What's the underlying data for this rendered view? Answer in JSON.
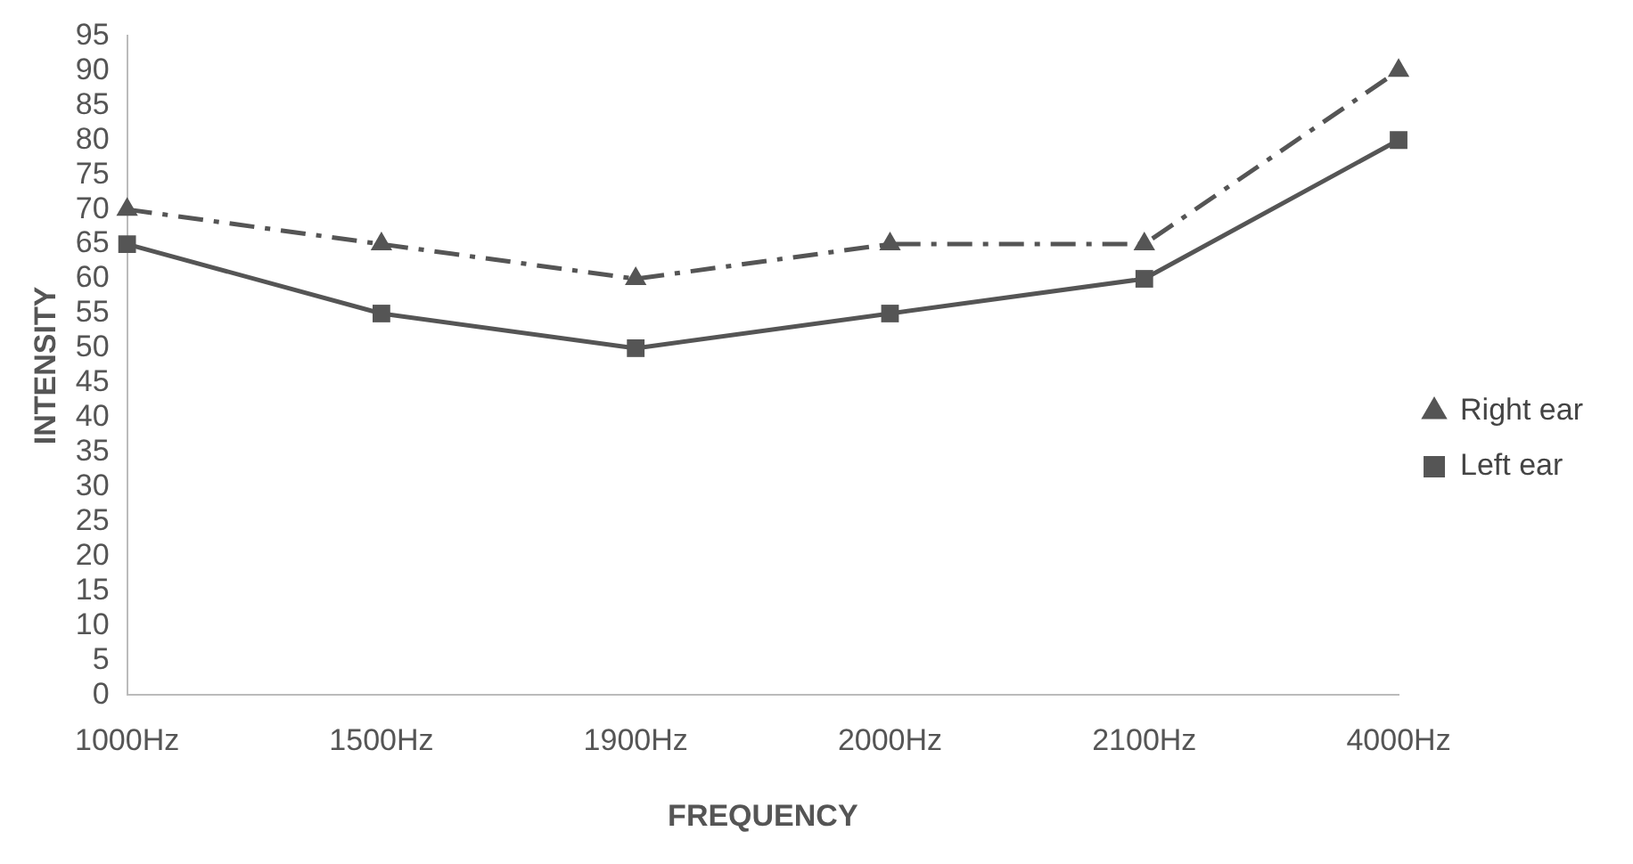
{
  "chart_data": {
    "type": "line",
    "xlabel": "FREQUENCY",
    "ylabel": "INTENSITY",
    "categories": [
      "1000Hz",
      "1500Hz",
      "1900Hz",
      "2000Hz",
      "2100Hz",
      "4000Hz"
    ],
    "series": [
      {
        "name": "Right ear",
        "color": "#555555",
        "values": [
          70,
          65,
          60,
          65,
          65,
          90
        ],
        "marker": "triangle",
        "line_style": "dashed"
      },
      {
        "name": "Left ear",
        "color": "#555555",
        "values": [
          65,
          55,
          50,
          55,
          60,
          80
        ],
        "marker": "square",
        "line_style": "solid"
      }
    ],
    "ylim": [
      0,
      95
    ],
    "yticks": [
      0,
      5,
      10,
      15,
      20,
      25,
      30,
      35,
      40,
      45,
      50,
      55,
      60,
      65,
      70,
      75,
      80,
      85,
      90,
      95
    ],
    "grid": false,
    "legend": "right"
  }
}
